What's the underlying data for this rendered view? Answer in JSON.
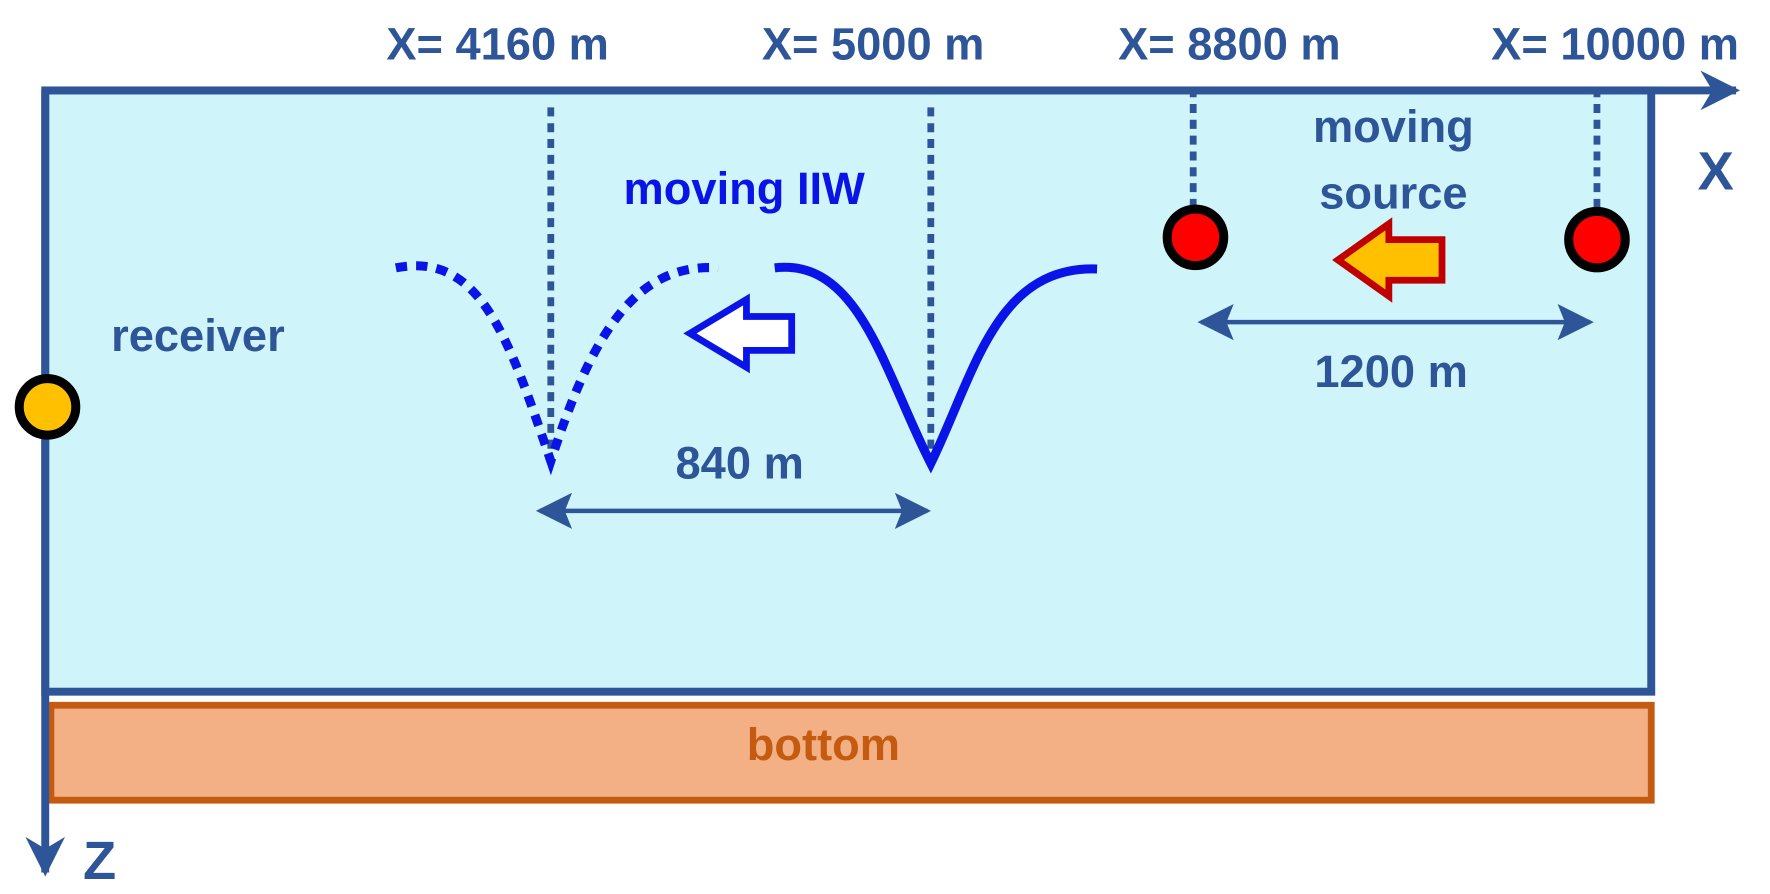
{
  "axes": {
    "x_label": "X",
    "z_label": "Z"
  },
  "positions": [
    "X= 4160 m",
    "X= 5000 m",
    "X= 8800 m",
    "X= 10000 m"
  ],
  "labels": {
    "receiver": "receiver",
    "iw": "moving IIW",
    "source": [
      "moving",
      "source"
    ],
    "source_spacing": "1200 m",
    "iw_spacing": "840 m",
    "bottom": "bottom"
  }
}
